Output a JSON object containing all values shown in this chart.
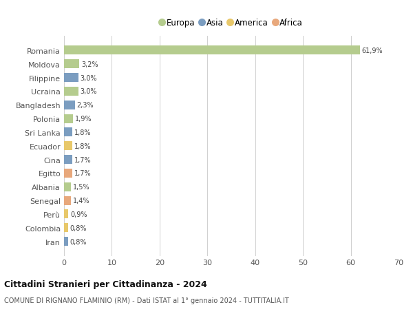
{
  "countries": [
    "Romania",
    "Moldova",
    "Filippine",
    "Ucraina",
    "Bangladesh",
    "Polonia",
    "Sri Lanka",
    "Ecuador",
    "Cina",
    "Egitto",
    "Albania",
    "Senegal",
    "Perù",
    "Colombia",
    "Iran"
  ],
  "values": [
    61.9,
    3.2,
    3.0,
    3.0,
    2.3,
    1.9,
    1.8,
    1.8,
    1.7,
    1.7,
    1.5,
    1.4,
    0.9,
    0.8,
    0.8
  ],
  "labels": [
    "61,9%",
    "3,2%",
    "3,0%",
    "3,0%",
    "2,3%",
    "1,9%",
    "1,8%",
    "1,8%",
    "1,7%",
    "1,7%",
    "1,5%",
    "1,4%",
    "0,9%",
    "0,8%",
    "0,8%"
  ],
  "continents": [
    "Europa",
    "Europa",
    "Asia",
    "Europa",
    "Asia",
    "Europa",
    "Asia",
    "America",
    "Asia",
    "Africa",
    "Europa",
    "Africa",
    "America",
    "America",
    "Asia"
  ],
  "colors": {
    "Europa": "#b5cc8e",
    "Asia": "#7b9dc0",
    "America": "#e8c86a",
    "Africa": "#e8a87c"
  },
  "legend_order": [
    "Europa",
    "Asia",
    "America",
    "Africa"
  ],
  "title": "Cittadini Stranieri per Cittadinanza - 2024",
  "subtitle": "COMUNE DI RIGNANO FLAMINIO (RM) - Dati ISTAT al 1° gennaio 2024 - TUTTITALIA.IT",
  "xlim": [
    0,
    70
  ],
  "xticks": [
    0,
    10,
    20,
    30,
    40,
    50,
    60,
    70
  ],
  "bg_color": "#ffffff",
  "grid_color": "#d0d0d0",
  "bar_height": 0.65
}
